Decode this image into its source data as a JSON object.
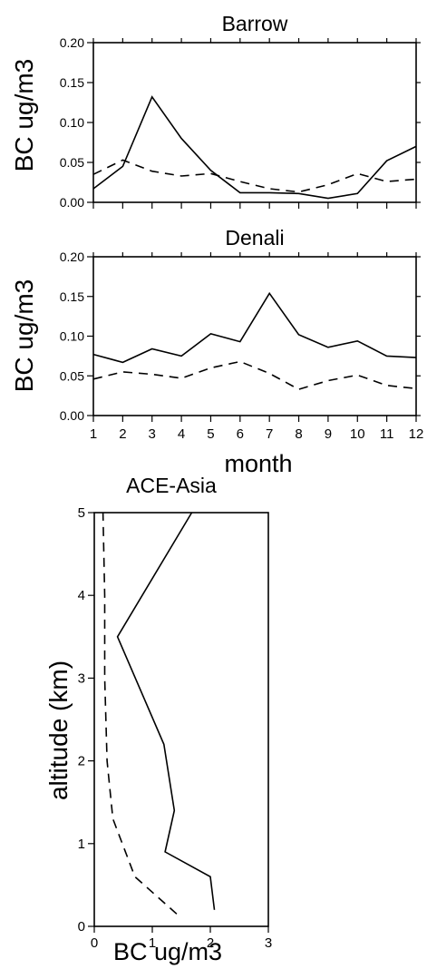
{
  "chart_data": [
    {
      "type": "line",
      "title": "Barrow",
      "ylabel": "BC ug/m3",
      "xlabel": "",
      "xlim": [
        1,
        12
      ],
      "ylim": [
        0,
        0.2
      ],
      "yticks": [
        "0.00",
        "0.05",
        "0.10",
        "0.15",
        "0.20"
      ],
      "yticks_values": [
        0,
        0.05,
        0.1,
        0.15,
        0.2
      ],
      "x": [
        1,
        2,
        3,
        4,
        5,
        6,
        7,
        8,
        9,
        10,
        11,
        12
      ],
      "series": [
        {
          "style": "solid",
          "values": [
            0.017,
            0.045,
            0.132,
            0.08,
            0.04,
            0.012,
            0.012,
            0.011,
            0.005,
            0.011,
            0.052,
            0.07
          ]
        },
        {
          "style": "dashed",
          "values": [
            0.035,
            0.053,
            0.039,
            0.033,
            0.036,
            0.026,
            0.017,
            0.013,
            0.022,
            0.036,
            0.026,
            0.029
          ]
        }
      ],
      "grid": false
    },
    {
      "type": "line",
      "title": "Denali",
      "ylabel": "BC ug/m3",
      "xlabel": "month",
      "xlim": [
        1,
        12
      ],
      "ylim": [
        0,
        0.2
      ],
      "xticks": [
        "1",
        "2",
        "3",
        "4",
        "5",
        "6",
        "7",
        "8",
        "9",
        "10",
        "11",
        "12"
      ],
      "yticks": [
        "0.00",
        "0.05",
        "0.10",
        "0.15",
        "0.20"
      ],
      "yticks_values": [
        0,
        0.05,
        0.1,
        0.15,
        0.2
      ],
      "x": [
        1,
        2,
        3,
        4,
        5,
        6,
        7,
        8,
        9,
        10,
        11,
        12
      ],
      "series": [
        {
          "style": "solid",
          "values": [
            0.077,
            0.067,
            0.084,
            0.075,
            0.103,
            0.093,
            0.154,
            0.102,
            0.086,
            0.094,
            0.075,
            0.073
          ]
        },
        {
          "style": "dashed",
          "values": [
            0.046,
            0.055,
            0.052,
            0.047,
            0.06,
            0.068,
            0.053,
            0.033,
            0.044,
            0.051,
            0.038,
            0.034
          ]
        }
      ],
      "grid": false
    },
    {
      "type": "line",
      "title": "ACE-Asia",
      "ylabel": "altitude (km)",
      "xlabel": "BC ug/m3",
      "xlim": [
        0,
        3
      ],
      "ylim": [
        0,
        5
      ],
      "xticks": [
        "0",
        "1",
        "2",
        "3"
      ],
      "xticks_values": [
        0,
        1,
        2,
        3
      ],
      "yticks": [
        "0",
        "1",
        "2",
        "3",
        "4",
        "5"
      ],
      "yticks_values": [
        0,
        1,
        2,
        3,
        4,
        5
      ],
      "series": [
        {
          "style": "solid",
          "x": [
            2.07,
            2.0,
            1.22,
            1.38,
            1.2,
            0.4,
            1.68
          ],
          "y": [
            0.2,
            0.6,
            0.9,
            1.4,
            2.2,
            3.5,
            5.0
          ]
        },
        {
          "style": "dashed",
          "x": [
            1.42,
            0.7,
            0.32,
            0.22,
            0.18,
            0.18,
            0.15
          ],
          "y": [
            0.15,
            0.6,
            1.3,
            2.0,
            3.0,
            4.0,
            5.0
          ]
        }
      ],
      "grid": false
    }
  ]
}
